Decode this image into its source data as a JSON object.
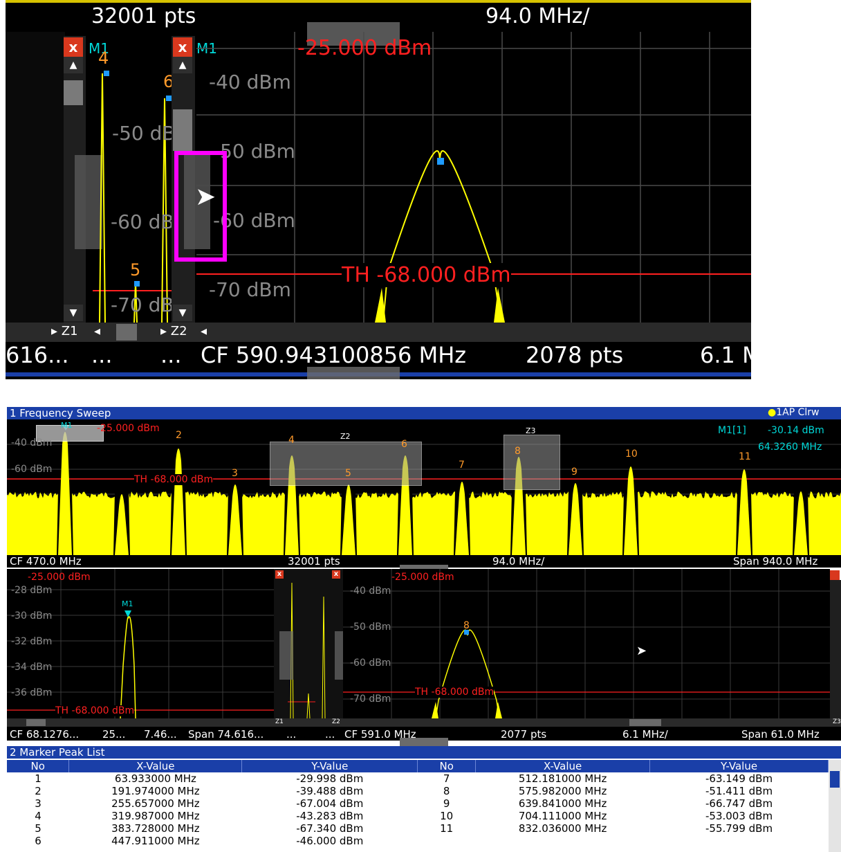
{
  "zoom": {
    "header_pts": "32001 pts",
    "header_div": "94.0 MHz/",
    "z1_marker": "M1",
    "z2_marker": "M1",
    "close": "x",
    "ref_level": "-25.000 dBm",
    "y_labels": [
      "-40 dBm",
      "-50 dBm",
      "-60 dBm",
      "-70 dBm"
    ],
    "small_labels": [
      "-50 dB",
      "-60 dB",
      "-70 dB"
    ],
    "threshold": "TH  -68.000 dBm",
    "peak_nums": [
      "4",
      "6",
      "5"
    ],
    "z1_tag": "Z1",
    "z2_tag": "Z2",
    "status_left": "616...",
    "status_dots1": "...",
    "status_dots2": "...",
    "status_cf": "CF 590.943100856 MHz",
    "status_pts": "2078 pts",
    "status_div": "6.1 M"
  },
  "win1": {
    "title": "1 Frequency Sweep",
    "trace_info": "1AP Clrw",
    "ref_level": "-25.000 dBm",
    "y_labels": [
      "-40 dBm",
      "-60 dBm"
    ],
    "threshold": "TH  -68.000 dBm",
    "m1_label": "M1[1]",
    "m1_level": "-30.14 dBm",
    "m1_freq": "64.3260 MHz",
    "peak_nums": [
      "2",
      "3",
      "4",
      "5",
      "6",
      "7",
      "8",
      "9",
      "10",
      "11"
    ],
    "marker": "M1",
    "zoom_tags": [
      "Z2",
      "Z3"
    ],
    "status_cf": "CF 470.0 MHz",
    "status_pts": "32001 pts",
    "status_div": "94.0 MHz/",
    "status_span": "Span 940.0 MHz"
  },
  "win_zoom_a": {
    "ref_level": "-25.000 dBm",
    "y_labels": [
      "-28 dBm",
      "-30 dBm",
      "-32 dBm",
      "-34 dBm",
      "-36 dBm"
    ],
    "threshold": "TH  -68.000 dBm",
    "marker": "M1",
    "status_cf": "CF 68.1276...",
    "status_pts": "25...",
    "status_div": "7.46...",
    "status_span": "Span 74.616..."
  },
  "win_zoom_b": {
    "ref_level": "-25.000 dBm",
    "y_labels": [
      "-40 dBm",
      "-50 dBm",
      "-60 dBm",
      "-70 dBm"
    ],
    "threshold": "TH  -68.000 dBm",
    "peak_num": "8",
    "status_cf": "CF 591.0 MHz",
    "status_pts": "2077 pts",
    "status_div": "6.1 MHz/",
    "status_span": "Span 61.0 MHz",
    "z_tags": [
      "Z1",
      "Z2",
      "Z3"
    ],
    "dots": "..."
  },
  "peak_list": {
    "title": "2 Marker Peak List",
    "headers": [
      "No",
      "X-Value",
      "Y-Value",
      "No",
      "X-Value",
      "Y-Value"
    ],
    "left": [
      {
        "no": "1",
        "x": "63.933000 MHz",
        "y": "-29.998 dBm"
      },
      {
        "no": "2",
        "x": "191.974000 MHz",
        "y": "-39.488 dBm"
      },
      {
        "no": "3",
        "x": "255.657000 MHz",
        "y": "-67.004 dBm"
      },
      {
        "no": "4",
        "x": "319.987000 MHz",
        "y": "-43.283 dBm"
      },
      {
        "no": "5",
        "x": "383.728000 MHz",
        "y": "-67.340 dBm"
      },
      {
        "no": "6",
        "x": "447.911000 MHz",
        "y": "-46.000 dBm"
      }
    ],
    "right": [
      {
        "no": "7",
        "x": "512.181000 MHz",
        "y": "-63.149 dBm"
      },
      {
        "no": "8",
        "x": "575.982000 MHz",
        "y": "-51.411 dBm"
      },
      {
        "no": "9",
        "x": "639.841000 MHz",
        "y": "-66.747 dBm"
      },
      {
        "no": "10",
        "x": "704.111000 MHz",
        "y": "-53.003 dBm"
      },
      {
        "no": "11",
        "x": "832.036000 MHz",
        "y": "-55.799 dBm"
      }
    ]
  },
  "colors": {
    "trace": "#ffff00",
    "threshold": "#ff2020",
    "marker": "#00d8d8",
    "title_bar": "#1a3fa8",
    "highlight": "#ff00ff"
  }
}
